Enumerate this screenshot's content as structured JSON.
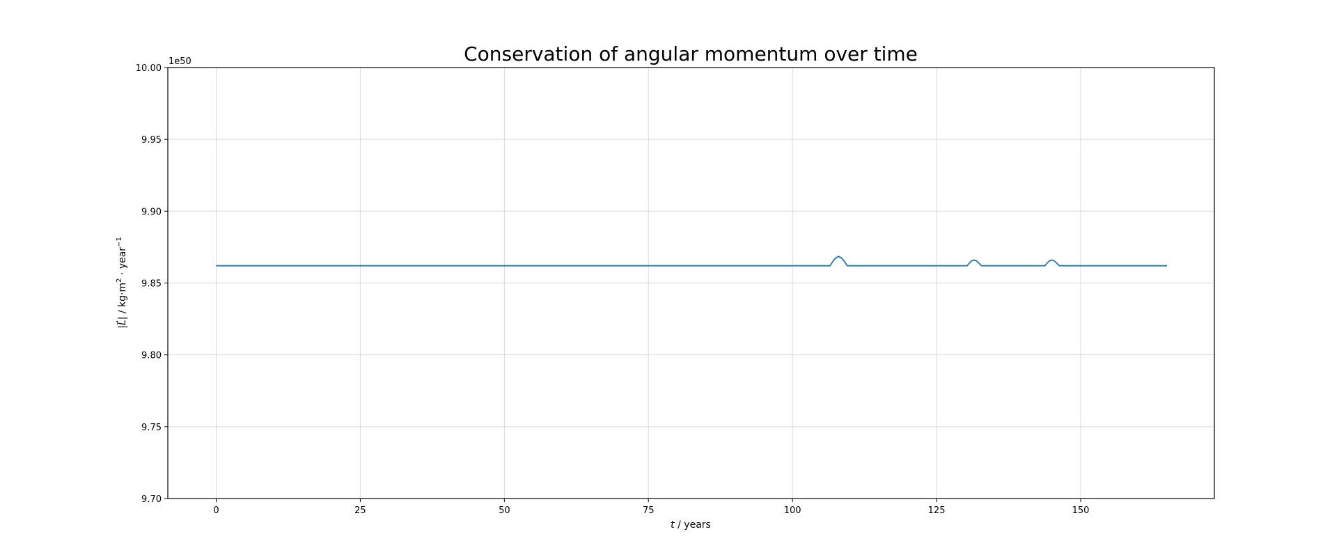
{
  "chart_data": {
    "type": "line",
    "title": "Conservation of angular momentum over time",
    "xlabel_var": "t",
    "xlabel_unit": " / years",
    "ylabel_var": "|L⃗|",
    "ylabel_unit": " / kg·m",
    "ylabel_sup1": "2",
    "ylabel_mid": " · year",
    "ylabel_sup2": "−1",
    "y_offset_text": "1e50",
    "xlim": [
      -8.4,
      173.2
    ],
    "ylim": [
      9.7,
      10.0
    ],
    "xticks": [
      0,
      25,
      50,
      75,
      100,
      125,
      150
    ],
    "yticks": [
      9.7,
      9.75,
      9.8,
      9.85,
      9.9,
      9.95,
      10.0
    ],
    "xtick_labels": [
      "0",
      "25",
      "50",
      "75",
      "100",
      "125",
      "150"
    ],
    "ytick_labels": [
      "9.70",
      "9.75",
      "9.80",
      "9.85",
      "9.90",
      "9.95",
      "10.00"
    ],
    "grid": true,
    "series": [
      {
        "color": "#1f77b4",
        "x": [
          0,
          106.5,
          107.0,
          107.5,
          108.0,
          108.5,
          109.0,
          109.5,
          110.0,
          130.3,
          130.7,
          131.1,
          131.5,
          131.9,
          132.3,
          132.8,
          143.8,
          144.2,
          144.6,
          145.0,
          145.4,
          145.8,
          146.3,
          165.0
        ],
        "y": [
          9.862,
          9.862,
          9.865,
          9.8675,
          9.8685,
          9.8675,
          9.865,
          9.862,
          9.862,
          9.862,
          9.864,
          9.8655,
          9.866,
          9.8655,
          9.864,
          9.862,
          9.862,
          9.864,
          9.8655,
          9.866,
          9.8655,
          9.864,
          9.862,
          9.862
        ]
      }
    ]
  }
}
